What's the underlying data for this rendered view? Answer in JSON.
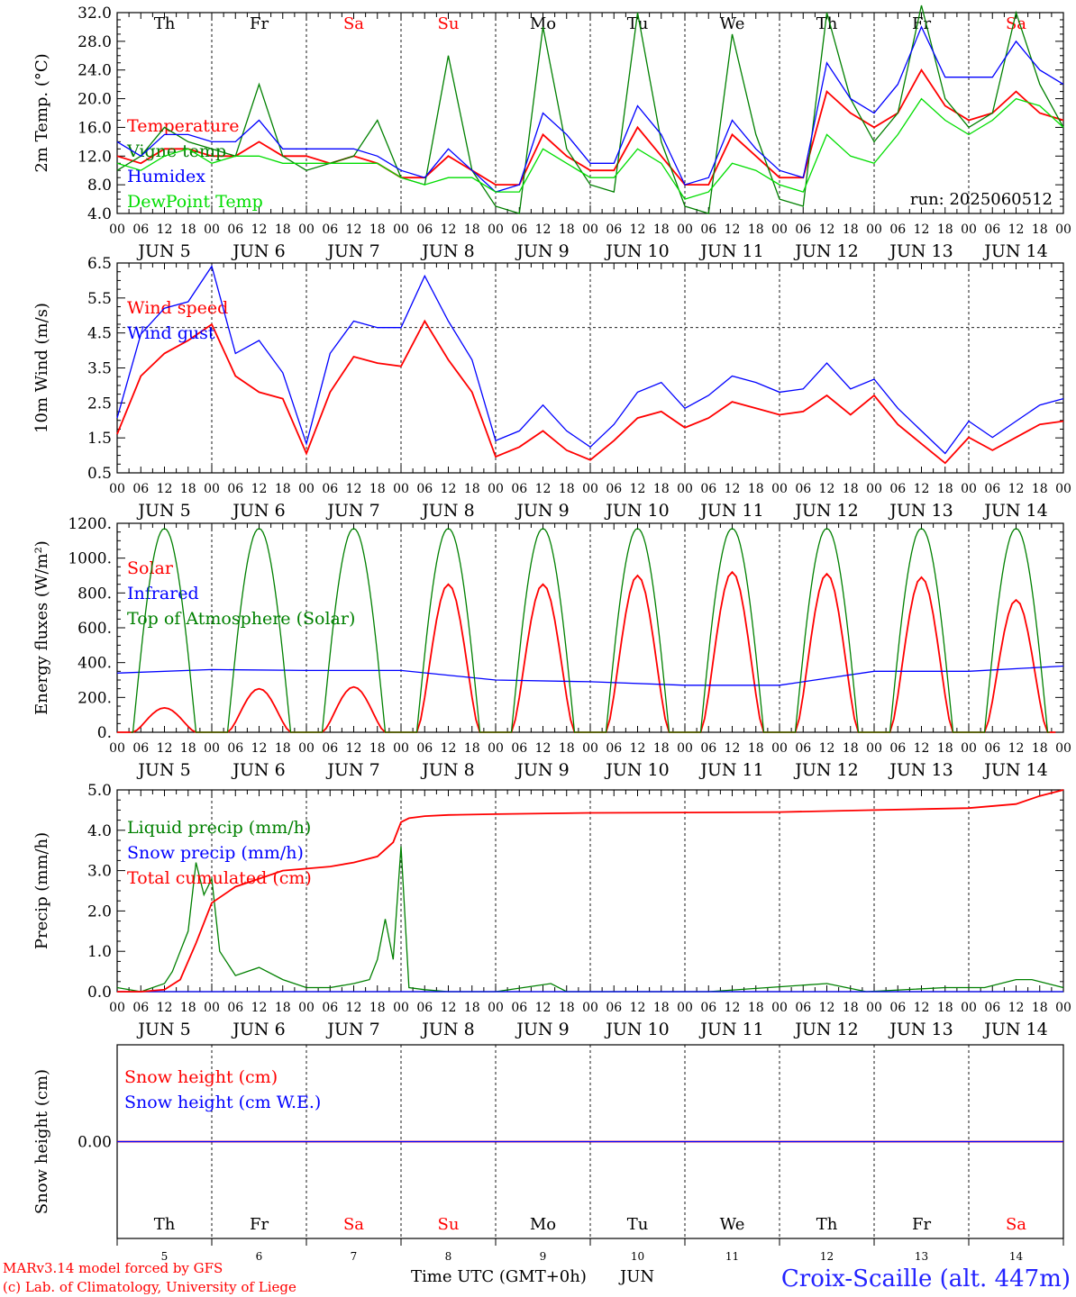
{
  "days": {
    "short": [
      "Th",
      "Fr",
      "Sa",
      "Su",
      "Mo",
      "Tu",
      "We",
      "Th",
      "Fr",
      "Sa"
    ],
    "colors": [
      "#000000",
      "#000000",
      "#ff0000",
      "#ff0000",
      "#000000",
      "#000000",
      "#000000",
      "#000000",
      "#000000",
      "#ff0000"
    ],
    "dates": [
      "5",
      "6",
      "7",
      "8",
      "9",
      "10",
      "11",
      "12",
      "13",
      "14"
    ],
    "month": "JUN",
    "hour_ticks": [
      "00",
      "06",
      "12",
      "18"
    ]
  },
  "footer": {
    "model": "MARv3.14 model forced by GFS",
    "copyright": "(c) Lab. of Climatology, University of Liege",
    "xlabel": "Time UTC (GMT+0h)",
    "month": "JUN",
    "station": "Croix-Scaille (alt. 447m)"
  },
  "colors": {
    "red": "#ff0000",
    "blue": "#0000ff",
    "green": "#008000",
    "lightgreen": "#00dd00"
  },
  "chart_data": [
    {
      "type": "line",
      "ylabel": "2m Temp. (°C)",
      "ylim": [
        4,
        32
      ],
      "yticks": [
        "4.0",
        "8.0",
        "12.0",
        "16.0",
        "20.0",
        "24.0",
        "28.0",
        "32.0"
      ],
      "annotation": "run: 2025060512",
      "xlim_hours": [
        0,
        240
      ],
      "series": [
        {
          "name": "Temperature",
          "color": "#ff0000",
          "x": [
            0,
            6,
            12,
            18,
            24,
            30,
            36,
            42,
            48,
            54,
            60,
            66,
            72,
            78,
            84,
            90,
            96,
            102,
            108,
            114,
            120,
            126,
            132,
            138,
            144,
            150,
            156,
            162,
            168,
            174,
            180,
            186,
            192,
            198,
            204,
            210,
            216,
            222,
            228,
            234,
            240
          ],
          "y": [
            12,
            11,
            13,
            13,
            12,
            12,
            14,
            12,
            12,
            11,
            12,
            11,
            9,
            9,
            12,
            10,
            8,
            8,
            15,
            12,
            10,
            10,
            16,
            12,
            8,
            8,
            15,
            12,
            9,
            9,
            21,
            18,
            16,
            18,
            24,
            19,
            17,
            18,
            21,
            18,
            17
          ]
        },
        {
          "name": "Vigne temp",
          "color": "#008000",
          "x": [
            0,
            6,
            12,
            18,
            24,
            30,
            36,
            42,
            48,
            54,
            60,
            66,
            72,
            78,
            84,
            90,
            96,
            102,
            108,
            114,
            120,
            126,
            132,
            138,
            144,
            150,
            156,
            162,
            168,
            174,
            180,
            186,
            192,
            198,
            204,
            210,
            216,
            222,
            228,
            234,
            240
          ],
          "y": [
            10,
            12,
            16,
            14,
            13,
            12,
            22,
            12,
            10,
            11,
            12,
            17,
            9,
            8,
            26,
            10,
            5,
            4,
            30,
            13,
            8,
            7,
            32,
            14,
            5,
            4,
            29,
            15,
            6,
            5,
            32,
            20,
            14,
            18,
            33,
            20,
            16,
            18,
            32,
            22,
            16
          ]
        },
        {
          "name": "Humidex",
          "color": "#0000ff",
          "x": [
            0,
            6,
            12,
            18,
            24,
            30,
            36,
            42,
            48,
            54,
            60,
            66,
            72,
            78,
            84,
            90,
            96,
            102,
            108,
            114,
            120,
            126,
            132,
            138,
            144,
            150,
            156,
            162,
            168,
            174,
            180,
            186,
            192,
            198,
            204,
            210,
            216,
            222,
            228,
            234,
            240
          ],
          "y": [
            14,
            12,
            15,
            15,
            14,
            14,
            17,
            13,
            13,
            13,
            13,
            12,
            10,
            9,
            13,
            10,
            7,
            8,
            18,
            15,
            11,
            11,
            19,
            15,
            8,
            9,
            17,
            13,
            10,
            9,
            25,
            20,
            18,
            22,
            30,
            23,
            23,
            23,
            28,
            24,
            22
          ]
        },
        {
          "name": "DewPoint Temp",
          "color": "#00dd00",
          "x": [
            0,
            6,
            12,
            18,
            24,
            30,
            36,
            42,
            48,
            54,
            60,
            66,
            72,
            78,
            84,
            90,
            96,
            102,
            108,
            114,
            120,
            126,
            132,
            138,
            144,
            150,
            156,
            162,
            168,
            174,
            180,
            186,
            192,
            198,
            204,
            210,
            216,
            222,
            228,
            234,
            240
          ],
          "y": [
            11,
            10,
            12,
            13,
            11,
            12,
            12,
            11,
            11,
            11,
            11,
            11,
            9,
            8,
            9,
            9,
            7,
            7,
            13,
            11,
            9,
            9,
            13,
            11,
            6,
            7,
            11,
            10,
            8,
            7,
            15,
            12,
            11,
            15,
            20,
            17,
            15,
            17,
            20,
            19,
            16
          ]
        }
      ]
    },
    {
      "type": "line",
      "ylabel": "10m Wind (m/s)",
      "ylim": [
        0.5,
        7.0
      ],
      "yticks": [
        "0.5",
        "1.5",
        "2.5",
        "3.5",
        "4.5",
        "5.5",
        "6.5"
      ],
      "reference_line": 5.0,
      "xlim_hours": [
        0,
        240
      ],
      "series": [
        {
          "name": "Wind speed",
          "color": "#ff0000",
          "x": [
            0,
            6,
            12,
            18,
            24,
            30,
            36,
            42,
            48,
            54,
            60,
            66,
            72,
            78,
            84,
            90,
            96,
            102,
            108,
            114,
            120,
            126,
            132,
            138,
            144,
            150,
            156,
            162,
            168,
            174,
            180,
            186,
            192,
            198,
            204,
            210,
            216,
            222,
            228,
            234,
            240
          ],
          "y": [
            1.7,
            3.5,
            4.2,
            4.6,
            5.1,
            3.5,
            3.0,
            2.8,
            1.1,
            3.0,
            4.1,
            3.9,
            3.8,
            5.2,
            4.0,
            3.0,
            1.0,
            1.3,
            1.8,
            1.2,
            0.9,
            1.5,
            2.2,
            2.4,
            1.9,
            2.2,
            2.7,
            2.5,
            2.3,
            2.4,
            2.9,
            2.3,
            2.9,
            2.0,
            1.4,
            0.8,
            1.6,
            1.2,
            1.6,
            2.0,
            2.1
          ]
        },
        {
          "name": "Wind gust",
          "color": "#0000ff",
          "x": [
            0,
            6,
            12,
            18,
            24,
            30,
            36,
            42,
            48,
            54,
            60,
            66,
            72,
            78,
            84,
            90,
            96,
            102,
            108,
            114,
            120,
            126,
            132,
            138,
            144,
            150,
            156,
            162,
            168,
            174,
            180,
            186,
            192,
            198,
            204,
            210,
            216,
            222,
            228,
            234,
            240
          ],
          "y": [
            2.2,
            4.8,
            5.6,
            5.8,
            6.9,
            4.2,
            4.6,
            3.6,
            1.4,
            4.2,
            5.2,
            5.0,
            5.0,
            6.6,
            5.2,
            4.0,
            1.5,
            1.8,
            2.6,
            1.8,
            1.3,
            2.0,
            3.0,
            3.3,
            2.5,
            2.9,
            3.5,
            3.3,
            3.0,
            3.1,
            3.9,
            3.1,
            3.4,
            2.5,
            1.8,
            1.1,
            2.1,
            1.6,
            2.1,
            2.6,
            2.8
          ]
        }
      ]
    },
    {
      "type": "line",
      "ylabel": "Energy fluxes (W/m²)",
      "ylim": [
        0,
        1200
      ],
      "yticks": [
        "0.",
        "200.",
        "400.",
        "600.",
        "800.",
        "1000.",
        "1200."
      ],
      "xlim_hours": [
        0,
        240
      ],
      "series": [
        {
          "name": "Solar",
          "color": "#ff0000",
          "daily_peaks": [
            140,
            250,
            260,
            850,
            850,
            900,
            920,
            910,
            890,
            760
          ]
        },
        {
          "name": "Infrared",
          "color": "#0000ff",
          "x": [
            0,
            24,
            48,
            72,
            96,
            120,
            144,
            168,
            192,
            216,
            240
          ],
          "y": [
            340,
            360,
            355,
            355,
            300,
            290,
            270,
            270,
            350,
            350,
            380
          ]
        },
        {
          "name": "Top of Atmosphere (Solar)",
          "color": "#008000",
          "daily_peak": 1170
        }
      ]
    },
    {
      "type": "line",
      "ylabel": "Precip (mm/h)",
      "ylim": [
        0,
        5
      ],
      "yticks": [
        "0.0",
        "1.0",
        "2.0",
        "3.0",
        "4.0",
        "5.0"
      ],
      "xlim_hours": [
        0,
        240
      ],
      "series": [
        {
          "name": "Liquid precip (mm/h)",
          "color": "#008000",
          "x": [
            0,
            6,
            12,
            14,
            16,
            18,
            20,
            22,
            24,
            26,
            30,
            36,
            42,
            48,
            54,
            60,
            64,
            66,
            68,
            70,
            72,
            74,
            78,
            84,
            90,
            96,
            110,
            114,
            120,
            150,
            180,
            190,
            210,
            220,
            228,
            232,
            240
          ],
          "y": [
            0.1,
            0,
            0.2,
            0.5,
            1.0,
            1.5,
            3.2,
            2.4,
            2.8,
            1.0,
            0.4,
            0.6,
            0.3,
            0.1,
            0.1,
            0.2,
            0.3,
            0.8,
            1.8,
            0.8,
            3.6,
            0.1,
            0.05,
            0,
            0,
            0,
            0.2,
            0,
            0,
            0,
            0.2,
            0,
            0.1,
            0.1,
            0.3,
            0.3,
            0.1
          ]
        },
        {
          "name": "Snow precip (mm/h)",
          "color": "#0000ff",
          "x": [
            0,
            240
          ],
          "y": [
            0,
            0
          ]
        },
        {
          "name": "Total cumulated (cm)",
          "color": "#ff0000",
          "x": [
            0,
            6,
            12,
            16,
            20,
            24,
            30,
            36,
            42,
            48,
            54,
            60,
            66,
            70,
            72,
            74,
            78,
            84,
            96,
            120,
            144,
            168,
            192,
            216,
            228,
            234,
            240
          ],
          "y": [
            0,
            0,
            0.05,
            0.3,
            1.2,
            2.2,
            2.6,
            2.8,
            3.0,
            3.05,
            3.1,
            3.2,
            3.35,
            3.7,
            4.2,
            4.3,
            4.35,
            4.38,
            4.4,
            4.43,
            4.44,
            4.45,
            4.5,
            4.55,
            4.65,
            4.85,
            5.0
          ]
        }
      ]
    },
    {
      "type": "line",
      "ylabel": "Snow height (cm)",
      "yticks": [
        "0.00"
      ],
      "xlim_hours": [
        0,
        240
      ],
      "series": [
        {
          "name": "Snow height (cm)",
          "color": "#ff0000",
          "x": [
            0,
            240
          ],
          "y": [
            0,
            0
          ]
        },
        {
          "name": "Snow height (cm W.E.)",
          "color": "#0000ff",
          "x": [
            0,
            240
          ],
          "y": [
            0,
            0
          ]
        }
      ]
    }
  ]
}
